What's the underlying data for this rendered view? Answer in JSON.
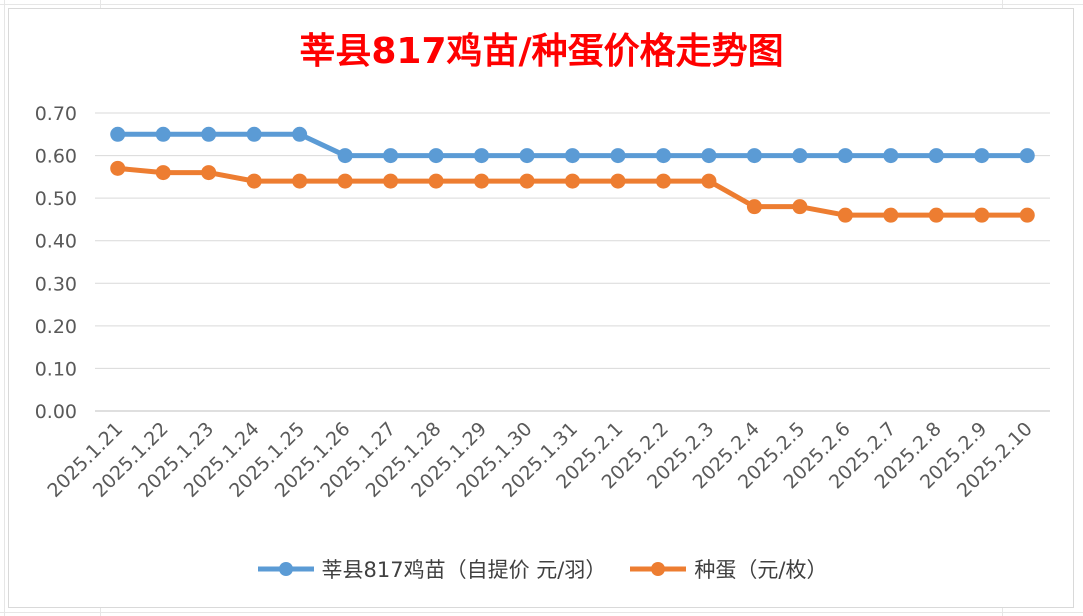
{
  "chart_data": {
    "type": "line",
    "title": "莘县817鸡苗/种蛋价格走势图",
    "categories": [
      "2025.1.21",
      "2025.1.22",
      "2025.1.23",
      "2025.1.24",
      "2025.1.25",
      "2025.1.26",
      "2025.1.27",
      "2025.1.28",
      "2025.1.29",
      "2025.1.30",
      "2025.1.31",
      "2025.2.1",
      "2025.2.2",
      "2025.2.3",
      "2025.2.4",
      "2025.2.5",
      "2025.2.6",
      "2025.2.7",
      "2025.2.8",
      "2025.2.9",
      "2025.2.10"
    ],
    "ylim": [
      0,
      0.7
    ],
    "yticks": [
      "0.00",
      "0.10",
      "0.20",
      "0.30",
      "0.40",
      "0.50",
      "0.60",
      "0.70"
    ],
    "grid": true,
    "legend_position": "bottom",
    "series": [
      {
        "name": "莘县817鸡苗（自提价 元/羽）",
        "color": "#5b9bd5",
        "values": [
          0.65,
          0.65,
          0.65,
          0.65,
          0.65,
          0.6,
          0.6,
          0.6,
          0.6,
          0.6,
          0.6,
          0.6,
          0.6,
          0.6,
          0.6,
          0.6,
          0.6,
          0.6,
          0.6,
          0.6,
          0.6
        ]
      },
      {
        "name": "种蛋（元/枚）",
        "color": "#ed7d31",
        "values": [
          0.57,
          0.56,
          0.56,
          0.54,
          0.54,
          0.54,
          0.54,
          0.54,
          0.54,
          0.54,
          0.54,
          0.54,
          0.54,
          0.54,
          0.48,
          0.48,
          0.46,
          0.46,
          0.46,
          0.46,
          0.46
        ]
      }
    ]
  }
}
